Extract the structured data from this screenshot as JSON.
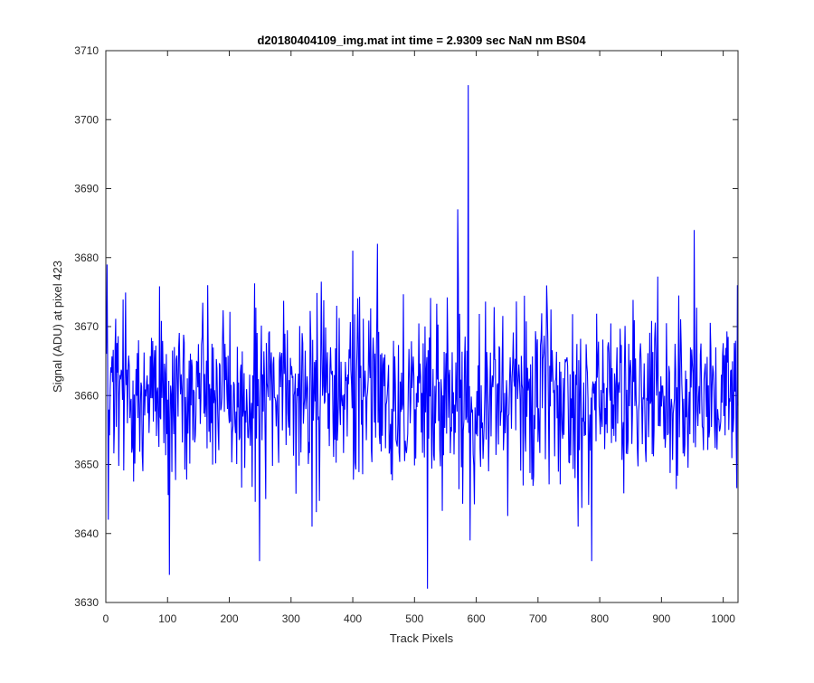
{
  "chart_data": {
    "type": "line",
    "title": "d20180404109_img.mat int time = 2.9309 sec  NaN nm BS04",
    "xlabel": "Track Pixels",
    "ylabel": "Signal (ADU) at pixel 423",
    "xlim": [
      0,
      1024
    ],
    "ylim": [
      3630,
      3710
    ],
    "xticks": [
      0,
      100,
      200,
      300,
      400,
      500,
      600,
      700,
      800,
      900,
      1000
    ],
    "yticks": [
      3630,
      3640,
      3650,
      3660,
      3670,
      3680,
      3690,
      3700,
      3710
    ],
    "grid": false,
    "legend": "none",
    "series": [
      {
        "color": "#0000ff",
        "x_start": 1,
        "x_step": 1,
        "points": 1024,
        "mean": 3660,
        "noise_sd": 6.5,
        "seed": 423,
        "notable_points": [
          {
            "x": 2,
            "y": 3679
          },
          {
            "x": 4,
            "y": 3642
          },
          {
            "x": 103,
            "y": 3634
          },
          {
            "x": 249,
            "y": 3636
          },
          {
            "x": 400,
            "y": 3681
          },
          {
            "x": 440,
            "y": 3682
          },
          {
            "x": 521,
            "y": 3632
          },
          {
            "x": 570,
            "y": 3687
          },
          {
            "x": 587,
            "y": 3705
          },
          {
            "x": 590,
            "y": 3639
          },
          {
            "x": 787,
            "y": 3636
          },
          {
            "x": 953,
            "y": 3684
          },
          {
            "x": 1023,
            "y": 3676
          }
        ]
      }
    ]
  },
  "colors": {
    "series_line": "#0000ff",
    "axes": "#262626",
    "background": "#ffffff"
  }
}
